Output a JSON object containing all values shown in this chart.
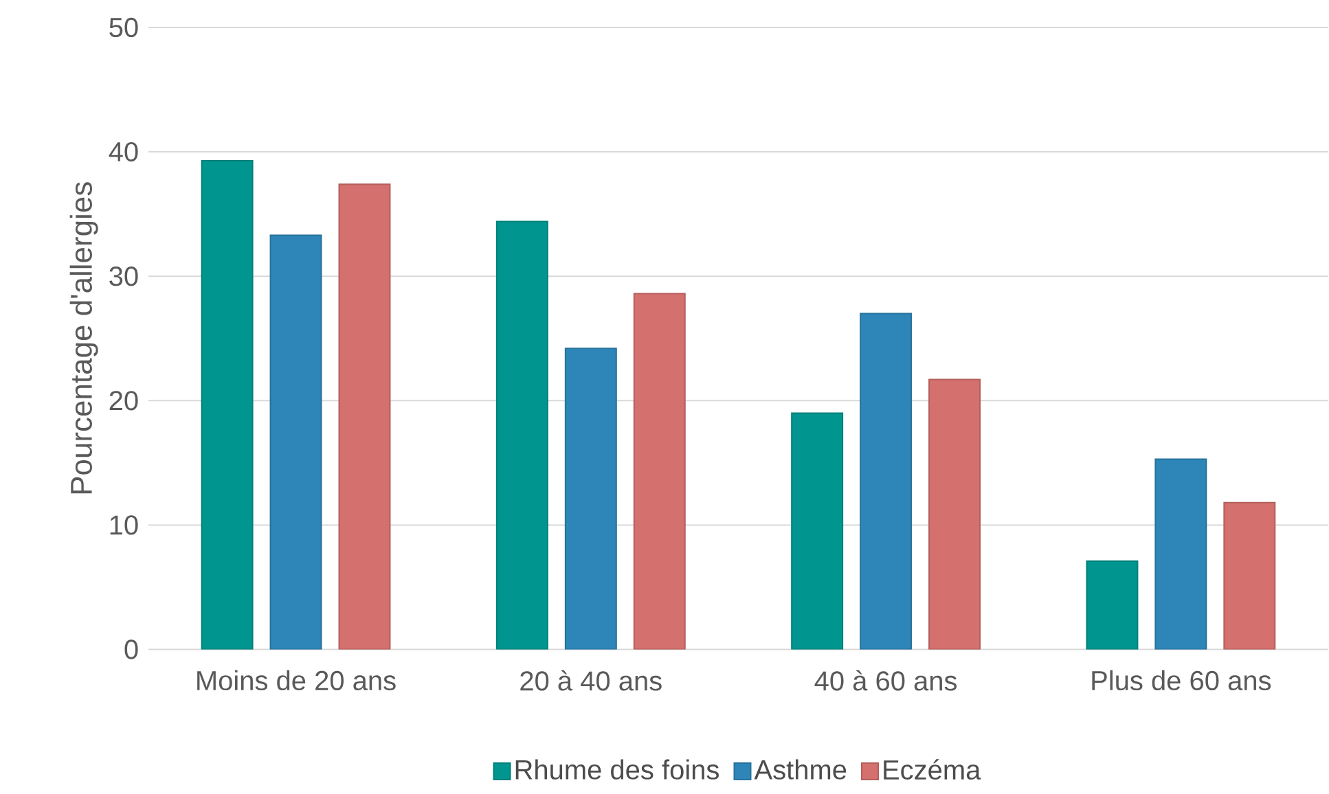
{
  "chart_data": {
    "type": "bar",
    "ylabel": "Pourcentage d'allergies",
    "categories": [
      "Moins de 20 ans",
      "20 à 40 ans",
      "40 à 60 ans",
      "Plus de 60 ans"
    ],
    "series": [
      {
        "name": "Rhume des foins",
        "color": "#00968f",
        "values": [
          39.3,
          34.4,
          19.0,
          7.1
        ]
      },
      {
        "name": "Asthme",
        "color": "#2e86b8",
        "values": [
          33.3,
          24.2,
          27.0,
          15.3
        ]
      },
      {
        "name": "Eczéma",
        "color": "#d4706e",
        "values": [
          37.4,
          28.6,
          21.7,
          11.8
        ]
      }
    ],
    "ylim": [
      0,
      50
    ],
    "yticks": [
      0,
      10,
      20,
      30,
      40,
      50
    ],
    "grid": "y",
    "legend": "bottom"
  }
}
